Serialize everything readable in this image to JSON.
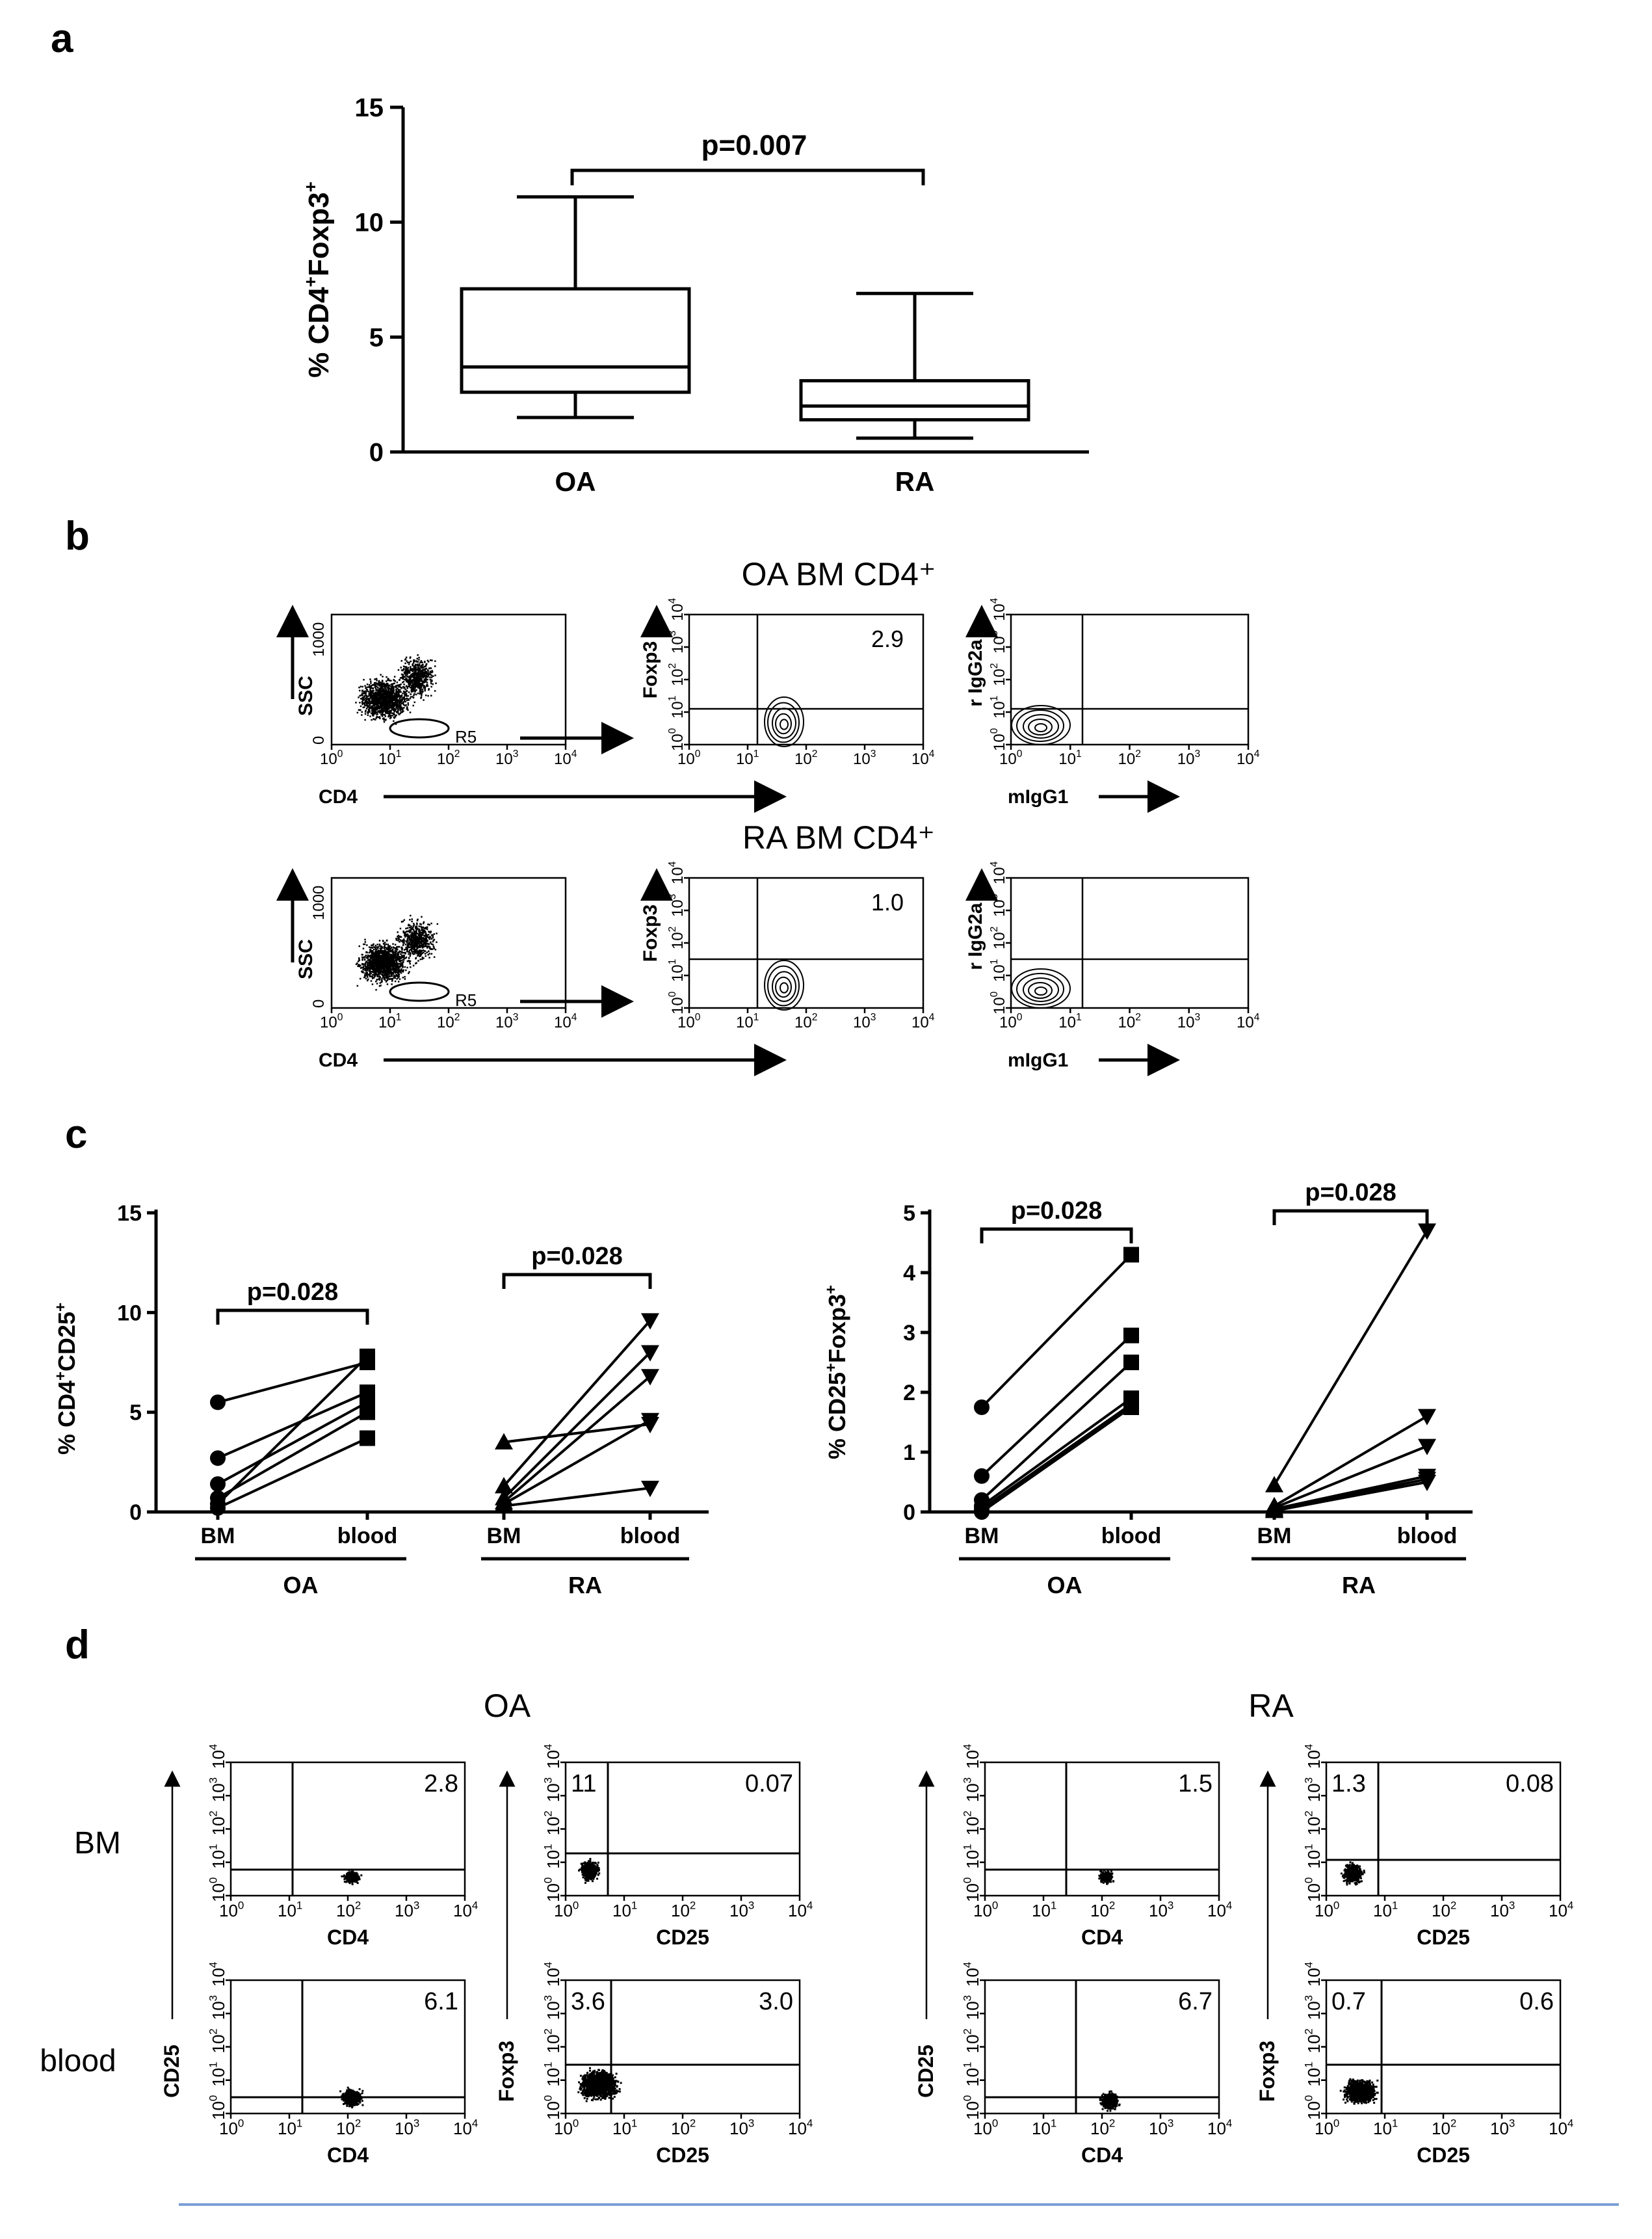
{
  "panels": {
    "a": "a",
    "b": "b",
    "c": "c",
    "d": "d"
  },
  "chart_data": [
    {
      "panel": "a",
      "type": "box",
      "categories": [
        "OA",
        "RA"
      ],
      "ylabel": "% CD4+Foxp3+",
      "ylabel_main": "% CD4",
      "ylabel_sup1": "+",
      "ylabel_mid": "Foxp3",
      "ylabel_sup2": "+",
      "ylim": [
        0,
        15
      ],
      "yticks": [
        0,
        5,
        10,
        15
      ],
      "boxes": [
        {
          "min": 1.5,
          "q1": 2.6,
          "median": 3.7,
          "q3": 7.1,
          "max": 11.1
        },
        {
          "min": 0.6,
          "q1": 1.4,
          "median": 2.0,
          "q3": 3.1,
          "max": 6.9
        }
      ],
      "annotation": "p=0.007"
    },
    {
      "panel": "c-left",
      "type": "line",
      "ylabel_main": "% CD4",
      "ylabel_sup1": "+",
      "ylabel_mid": "CD25",
      "ylabel_sup2": "+",
      "ylim": [
        0,
        15
      ],
      "yticks": [
        0,
        5,
        10,
        15
      ],
      "x": [
        "BM",
        "blood",
        "BM",
        "blood"
      ],
      "groups": [
        "OA",
        "RA"
      ],
      "series": [
        {
          "group": "OA",
          "marker": "circle-square",
          "pairs": [
            [
              5.5,
              7.5
            ],
            [
              2.7,
              6.0
            ],
            [
              1.4,
              5.5
            ],
            [
              0.7,
              5.0
            ],
            [
              0.4,
              7.8
            ],
            [
              0.2,
              3.7
            ]
          ]
        },
        {
          "group": "RA",
          "marker": "triangle",
          "pairs": [
            [
              3.5,
              4.4
            ],
            [
              1.3,
              9.6
            ],
            [
              0.7,
              8.0
            ],
            [
              0.5,
              6.8
            ],
            [
              0.4,
              4.6
            ],
            [
              0.3,
              1.2
            ]
          ]
        }
      ],
      "annotations": [
        "p=0.028",
        "p=0.028"
      ]
    },
    {
      "panel": "c-right",
      "type": "line",
      "ylabel_main": "% CD25",
      "ylabel_sup1": "+",
      "ylabel_mid": "Foxp3",
      "ylabel_sup2": "+",
      "ylim": [
        0,
        5
      ],
      "yticks": [
        0,
        1,
        2,
        3,
        4,
        5
      ],
      "x": [
        "BM",
        "blood",
        "BM",
        "blood"
      ],
      "groups": [
        "OA",
        "RA"
      ],
      "series": [
        {
          "group": "OA",
          "marker": "circle-square",
          "pairs": [
            [
              1.75,
              4.3
            ],
            [
              0.6,
              2.95
            ],
            [
              0.2,
              2.5
            ],
            [
              0.1,
              1.9
            ],
            [
              0.05,
              1.8
            ],
            [
              0.0,
              1.75
            ]
          ]
        },
        {
          "group": "RA",
          "marker": "triangle",
          "pairs": [
            [
              0.45,
              4.7
            ],
            [
              0.1,
              1.6
            ],
            [
              0.07,
              1.1
            ],
            [
              0.05,
              0.6
            ],
            [
              0.03,
              0.55
            ],
            [
              0.02,
              0.5
            ]
          ]
        }
      ],
      "annotations": [
        "p=0.028",
        "p=0.028"
      ]
    }
  ],
  "panel_b": {
    "titles": [
      "OA BM CD4⁺",
      "RA BM CD4⁺"
    ],
    "ssc": "SSC",
    "cd4": "CD4",
    "foxp3": "Foxp3",
    "rigg2a": "r IgG2a",
    "migg1": "mIgG1",
    "gate": "R5",
    "values": [
      "2.9",
      "1.0"
    ],
    "ssc_ticks": [
      "0",
      "1000"
    ]
  },
  "panel_d": {
    "groups": [
      "OA",
      "RA"
    ],
    "rows": [
      "BM",
      "blood"
    ],
    "xlabels": [
      "CD4",
      "CD25"
    ],
    "ylabels": [
      "CD25",
      "Foxp3"
    ],
    "values": {
      "oa_bm_cd4": "2.8",
      "oa_bm_cd25_ul": "11",
      "oa_bm_cd25_ur": "0.07",
      "oa_blood_cd4": "6.1",
      "oa_blood_cd25_ul": "3.6",
      "oa_blood_cd25_ur": "3.0",
      "ra_bm_cd4": "1.5",
      "ra_bm_cd25_ul": "1.3",
      "ra_bm_cd25_ur": "0.08",
      "ra_blood_cd4": "6.7",
      "ra_blood_cd25_ul": "0.7",
      "ra_blood_cd25_ur": "0.6"
    }
  },
  "log_ticks": [
    "10",
    "0",
    "1",
    "2",
    "3",
    "4"
  ]
}
